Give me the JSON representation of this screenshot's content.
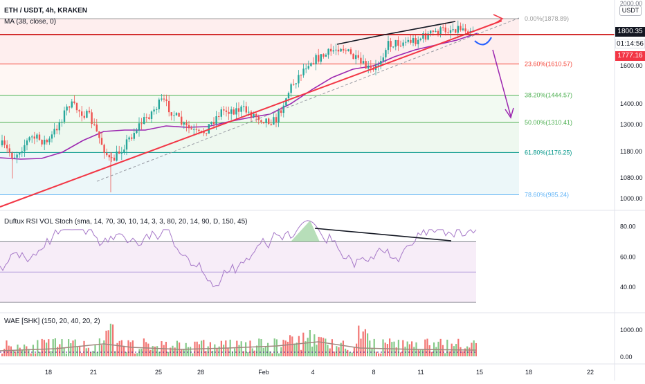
{
  "header": {
    "symbol": "ETH / USDT, 4h, KRAKEN",
    "ma_label": "MA (38, close, 0)"
  },
  "currency": {
    "top_value": "2000.00",
    "unit": "USDT"
  },
  "price_axis": {
    "ticks": [
      "1600.00",
      "1400.00",
      "1300.00",
      "1180.00",
      "1080.00",
      "1000.00"
    ]
  },
  "price_tags": {
    "upper": "1800.35",
    "timer": "01:14:56",
    "lower": "1777.16"
  },
  "fib_levels": [
    {
      "label": "0.00%(1878.89)",
      "price": 1878.89,
      "color": "#9e9e9e"
    },
    {
      "label": "23.60%(1610.57)",
      "price": 1610.57,
      "color": "#f44336"
    },
    {
      "label": "38.20%(1444.57)",
      "price": 1444.57,
      "color": "#4caf50"
    },
    {
      "label": "50.00%(1310.41)",
      "price": 1310.41,
      "color": "#4caf50"
    },
    {
      "label": "61.80%(1176.25)",
      "price": 1176.25,
      "color": "#009688"
    },
    {
      "label": "78.60%(985.24)",
      "price": 985.24,
      "color": "#64b5f6"
    }
  ],
  "rsi": {
    "label": "Duftux RSI VOL Stoch (sma, 14, 70, 30, 10, 14, 3, 3, 80, 20, 14, 90, D, 150, 45)",
    "ticks": [
      "80.00",
      "60.00",
      "40.00"
    ]
  },
  "wae": {
    "label": "WAE [SHK] (150, 20, 40, 20, 2)",
    "ticks": [
      "1000.00",
      "0.00"
    ]
  },
  "time_axis": {
    "labels": [
      "18",
      "21",
      "25",
      "28",
      "Feb",
      "4",
      "8",
      "11",
      "15",
      "18",
      "22"
    ]
  },
  "colors": {
    "up": "#26a69a",
    "down": "#ef5350",
    "ma": "#9c27b0",
    "trend": "#f23645",
    "rsi_line": "#a678c8",
    "projection": "#9c27b0",
    "curve": "#2962ff"
  },
  "chart_data": {
    "type": "candlestick",
    "price_range": [
      955,
      1905
    ],
    "key_levels": {
      "resistance": 1800.35,
      "last": 1777.16
    },
    "candles": [],
    "rsi_range": [
      25,
      88
    ],
    "rsi_bands": {
      "upper": 70,
      "middle": 50,
      "lower": 30
    }
  }
}
